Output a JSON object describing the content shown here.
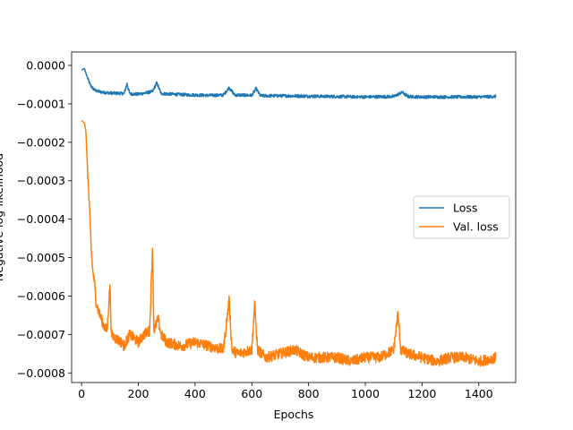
{
  "chart_data": {
    "type": "line",
    "title": "",
    "xlabel": "Epochs",
    "ylabel": "Negative log-likelihood",
    "xlim": [
      -35,
      1530
    ],
    "ylim": [
      -0.000825,
      3.5e-05
    ],
    "xticks": [
      0,
      200,
      400,
      600,
      800,
      1000,
      1200,
      1400
    ],
    "xtick_labels": [
      "0",
      "200",
      "400",
      "600",
      "800",
      "1000",
      "1200",
      "1400"
    ],
    "yticks": [
      0.0,
      -0.0001,
      -0.0002,
      -0.0003,
      -0.0004,
      -0.0005,
      -0.0006,
      -0.0007,
      -0.0008
    ],
    "ytick_labels": [
      "0.0000",
      "−0.0001",
      "−0.0002",
      "−0.0003",
      "−0.0004",
      "−0.0005",
      "−0.0006",
      "−0.0007",
      "−0.0008"
    ],
    "grid": false,
    "legend_position": "center-right",
    "series": [
      {
        "name": "Loss",
        "color": "#1f77b4",
        "points": [
          [
            0,
            -1.2e-05
          ],
          [
            10,
            -8e-06
          ],
          [
            20,
            -3e-05
          ],
          [
            30,
            -5e-05
          ],
          [
            40,
            -6e-05
          ],
          [
            50,
            -6.6e-05
          ],
          [
            75,
            -7e-05
          ],
          [
            100,
            -7.2e-05
          ],
          [
            150,
            -7.3e-05
          ],
          [
            160,
            -4.8e-05
          ],
          [
            170,
            -7.4e-05
          ],
          [
            200,
            -7.5e-05
          ],
          [
            250,
            -6.8e-05
          ],
          [
            265,
            -4.5e-05
          ],
          [
            280,
            -7.3e-05
          ],
          [
            300,
            -7.4e-05
          ],
          [
            350,
            -7.6e-05
          ],
          [
            400,
            -7.7e-05
          ],
          [
            450,
            -7.8e-05
          ],
          [
            500,
            -7.7e-05
          ],
          [
            520,
            -5.8e-05
          ],
          [
            540,
            -7.7e-05
          ],
          [
            600,
            -7.8e-05
          ],
          [
            615,
            -6e-05
          ],
          [
            630,
            -7.9e-05
          ],
          [
            700,
            -7.9e-05
          ],
          [
            800,
            -8e-05
          ],
          [
            900,
            -8.1e-05
          ],
          [
            1000,
            -8.2e-05
          ],
          [
            1100,
            -8.1e-05
          ],
          [
            1130,
            -7e-05
          ],
          [
            1150,
            -8.1e-05
          ],
          [
            1200,
            -8.2e-05
          ],
          [
            1300,
            -8.2e-05
          ],
          [
            1400,
            -8.2e-05
          ],
          [
            1460,
            -8.1e-05
          ]
        ]
      },
      {
        "name": "Val. loss",
        "color": "#ff7f0e",
        "points": [
          [
            0,
            -0.000143
          ],
          [
            10,
            -0.00015
          ],
          [
            15,
            -0.00017
          ],
          [
            20,
            -0.00025
          ],
          [
            25,
            -0.00033
          ],
          [
            30,
            -0.00041
          ],
          [
            35,
            -0.00049
          ],
          [
            40,
            -0.00054
          ],
          [
            45,
            -0.00056
          ],
          [
            50,
            -0.00061
          ],
          [
            60,
            -0.00064
          ],
          [
            70,
            -0.00066
          ],
          [
            80,
            -0.00068
          ],
          [
            90,
            -0.00069
          ],
          [
            100,
            -0.00057
          ],
          [
            105,
            -0.0007
          ],
          [
            120,
            -0.00071
          ],
          [
            140,
            -0.00072
          ],
          [
            150,
            -0.00073
          ],
          [
            170,
            -0.0007
          ],
          [
            200,
            -0.00072
          ],
          [
            220,
            -0.0007
          ],
          [
            240,
            -0.00069
          ],
          [
            250,
            -0.000472
          ],
          [
            255,
            -0.00069
          ],
          [
            270,
            -0.00066
          ],
          [
            280,
            -0.0007
          ],
          [
            300,
            -0.00072
          ],
          [
            350,
            -0.00073
          ],
          [
            400,
            -0.00072
          ],
          [
            450,
            -0.00073
          ],
          [
            500,
            -0.00074
          ],
          [
            520,
            -0.00061
          ],
          [
            530,
            -0.00074
          ],
          [
            550,
            -0.00075
          ],
          [
            600,
            -0.00074
          ],
          [
            610,
            -0.00062
          ],
          [
            620,
            -0.00074
          ],
          [
            650,
            -0.00076
          ],
          [
            700,
            -0.00075
          ],
          [
            750,
            -0.00074
          ],
          [
            800,
            -0.00076
          ],
          [
            850,
            -0.00076
          ],
          [
            900,
            -0.00076
          ],
          [
            950,
            -0.00077
          ],
          [
            1000,
            -0.00076
          ],
          [
            1050,
            -0.00076
          ],
          [
            1100,
            -0.00074
          ],
          [
            1115,
            -0.000645
          ],
          [
            1125,
            -0.00074
          ],
          [
            1150,
            -0.00075
          ],
          [
            1200,
            -0.00076
          ],
          [
            1250,
            -0.00077
          ],
          [
            1300,
            -0.00076
          ],
          [
            1350,
            -0.00076
          ],
          [
            1400,
            -0.00077
          ],
          [
            1460,
            -0.00076
          ]
        ]
      }
    ]
  }
}
